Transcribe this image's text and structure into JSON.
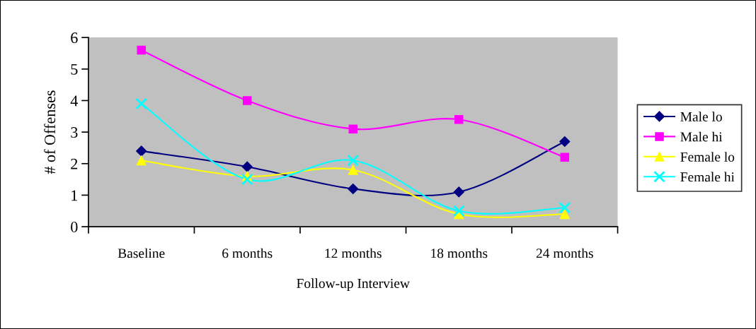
{
  "chart_data": {
    "type": "line",
    "xlabel": "Follow-up Interview",
    "ylabel": "# of Offenses",
    "categories": [
      "Baseline",
      "6 months",
      "12 months",
      "18 months",
      "24 months"
    ],
    "series": [
      {
        "name": "Male lo",
        "color": "#000080",
        "marker": "diamond",
        "values": [
          2.4,
          1.9,
          1.2,
          1.1,
          2.7
        ]
      },
      {
        "name": "Male hi",
        "color": "#ff00ff",
        "marker": "square",
        "values": [
          5.6,
          4.0,
          3.1,
          3.4,
          2.2
        ]
      },
      {
        "name": "Female lo",
        "color": "#ffff00",
        "marker": "triangle",
        "values": [
          2.1,
          1.6,
          1.8,
          0.4,
          0.4
        ]
      },
      {
        "name": "Female hi",
        "color": "#00ffff",
        "marker": "cross",
        "values": [
          3.9,
          1.5,
          2.1,
          0.5,
          0.6
        ]
      }
    ],
    "ylim": [
      0,
      6
    ],
    "yticks": [
      0,
      1,
      2,
      3,
      4,
      5,
      6
    ],
    "grid": false,
    "legend": "right",
    "line_style": "solid"
  }
}
